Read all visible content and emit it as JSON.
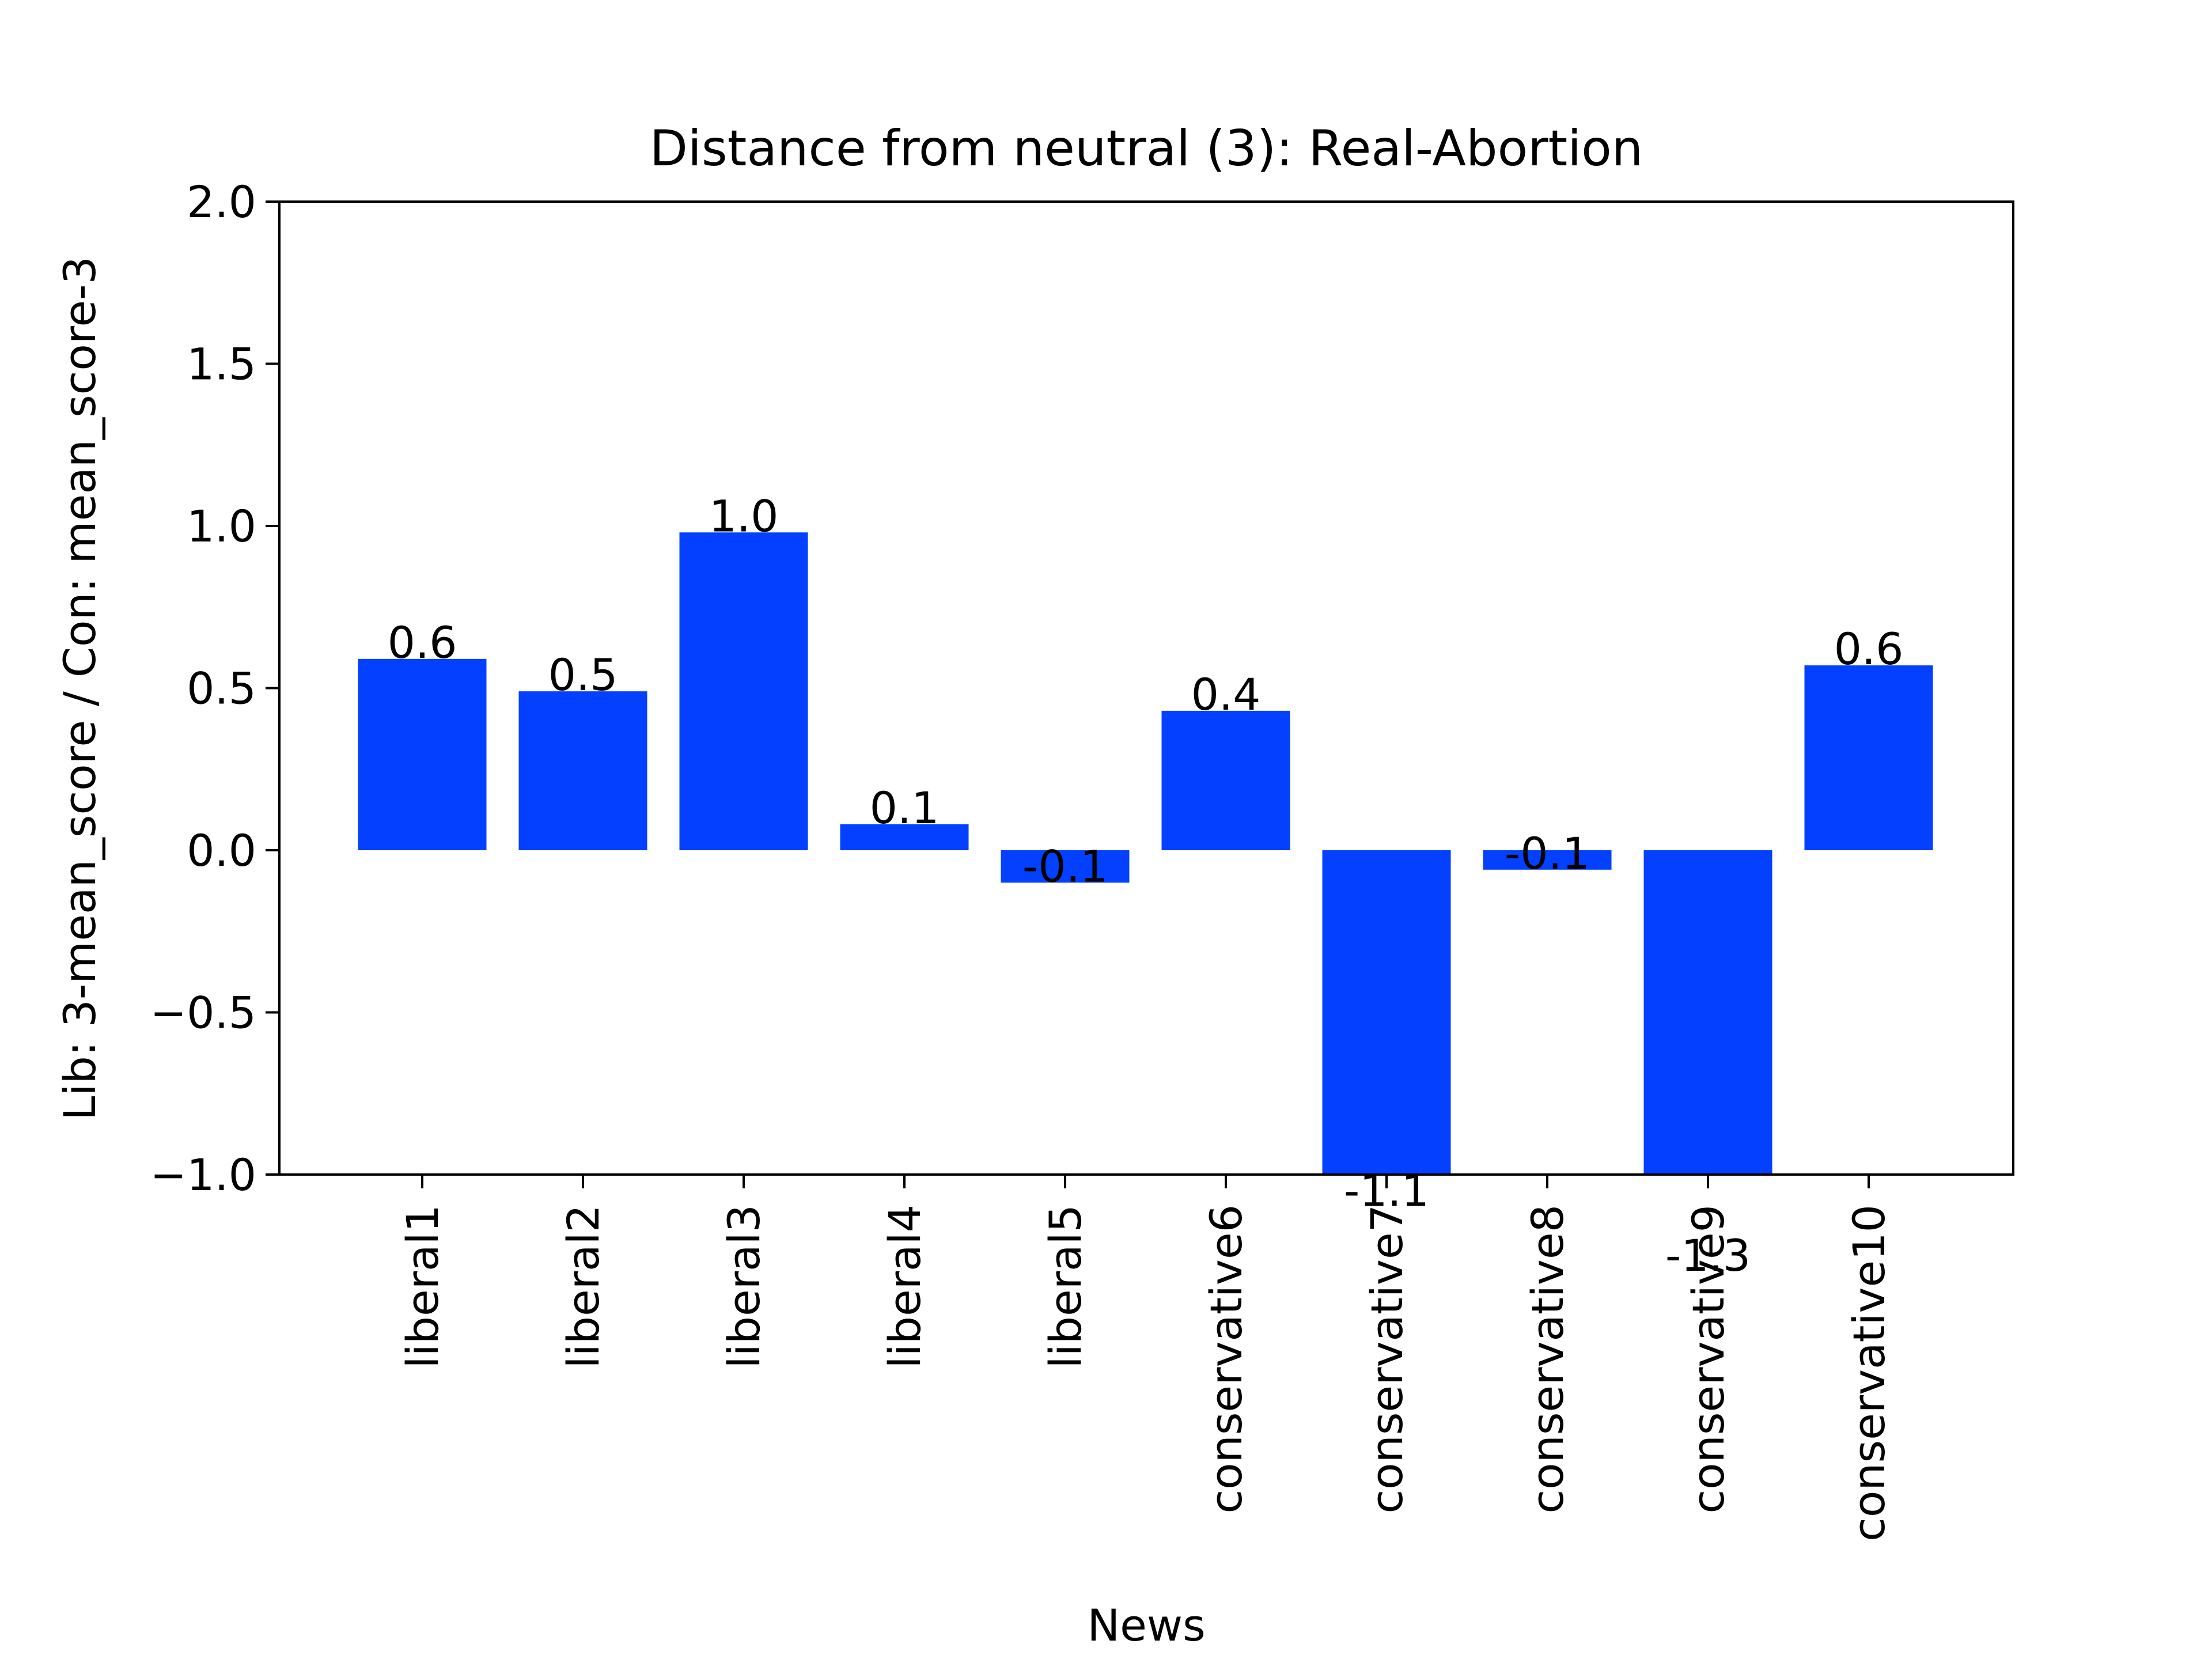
{
  "chart_data": {
    "type": "bar",
    "title": "Distance from neutral (3): Real-Abortion",
    "xlabel": "News",
    "ylabel": "Lib: 3-mean_score / Con: mean_score-3",
    "categories": [
      "liberal1",
      "liberal2",
      "liberal3",
      "liberal4",
      "liberal5",
      "conservative6",
      "conservative7",
      "conservative8",
      "conservative9",
      "conservative10"
    ],
    "values": [
      0.59,
      0.49,
      0.98,
      0.08,
      -0.1,
      0.43,
      -1.1,
      -0.06,
      -1.3,
      0.57
    ],
    "value_labels": [
      "0.6",
      "0.5",
      "1.0",
      "0.1",
      "-0.1",
      "0.4",
      "-1.1",
      "-0.1",
      "-1.3",
      "0.6"
    ],
    "ylim": [
      -1.0,
      2.0
    ],
    "yticks": [
      -1.0,
      -0.5,
      0.0,
      0.5,
      1.0,
      1.5,
      2.0
    ],
    "ytick_labels": [
      "−1.0",
      "−0.5",
      "0.0",
      "0.5",
      "1.0",
      "1.5",
      "2.0"
    ],
    "bar_color": "#0340ff",
    "grid": false,
    "legend": "none"
  }
}
